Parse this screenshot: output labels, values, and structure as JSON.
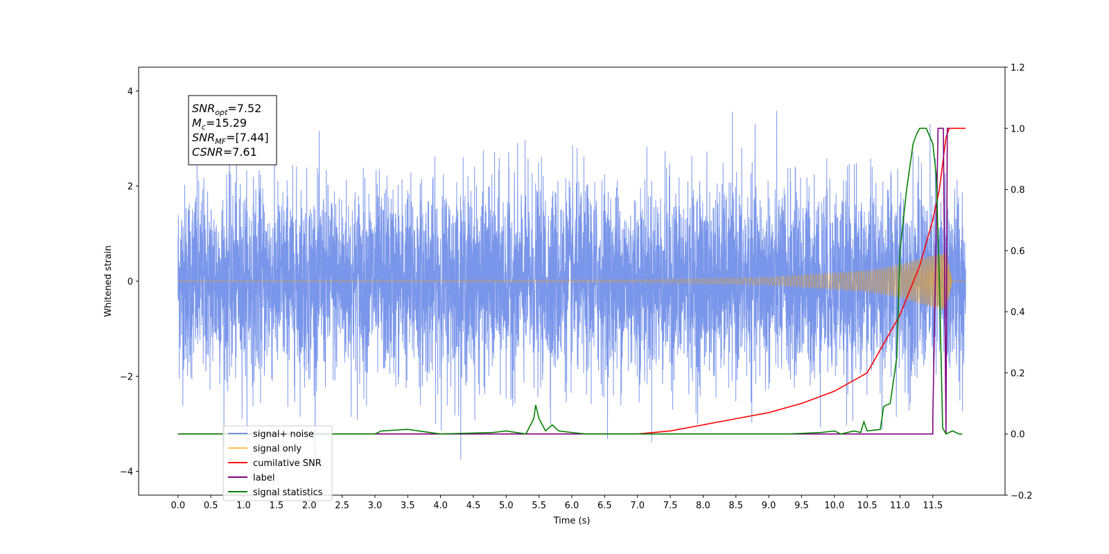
{
  "chart_data": {
    "type": "line",
    "title": "",
    "xlabel": "Time (s)",
    "ylabel": "Whitened strain",
    "ylabel_right": "",
    "xlim": [
      -0.6,
      12.6
    ],
    "ylim": [
      -4.5,
      4.5
    ],
    "ylim_right": [
      -0.2,
      1.2
    ],
    "x_ticks": [
      "0.0",
      "0.5",
      "1.0",
      "1.5",
      "2.0",
      "2.5",
      "3.0",
      "3.5",
      "4.0",
      "4.5",
      "5.0",
      "5.5",
      "6.0",
      "6.5",
      "7.0",
      "7.5",
      "8.0",
      "8.5",
      "9.0",
      "9.5",
      "10.0",
      "10.5",
      "11.0",
      "11.5"
    ],
    "y_ticks": [
      -4,
      -2,
      0,
      2,
      4
    ],
    "y_ticks_right": [
      "−0.2",
      "0.0",
      "0.2",
      "0.4",
      "0.6",
      "0.8",
      "1.0",
      "1.2"
    ],
    "grid": false,
    "legend_position": "lower-left",
    "annotation": {
      "lines": [
        {
          "sym": "SNR",
          "sub": "opt",
          "value": "=7.52"
        },
        {
          "sym": "M",
          "sub": "c",
          "value": "=15.29"
        },
        {
          "sym": "SNR",
          "sub": "MF",
          "value": "=[7.44]"
        },
        {
          "sym": "CSNR",
          "sub": "",
          "value": "=7.61"
        }
      ]
    },
    "series": [
      {
        "name": "signal+ noise",
        "color": "#4169e1",
        "axis": "left",
        "kind": "noise",
        "x_range": [
          0.0,
          12.0
        ],
        "amplitude_typical": 1.0,
        "amplitude_max": 4.1
      },
      {
        "name": "signal only",
        "color": "#ffa500",
        "axis": "left",
        "kind": "chirp",
        "x_range": [
          0.0,
          12.0
        ],
        "amplitude_envelope": [
          [
            0.0,
            0.01
          ],
          [
            7.0,
            0.03
          ],
          [
            9.0,
            0.08
          ],
          [
            10.5,
            0.22
          ],
          [
            11.0,
            0.35
          ],
          [
            11.5,
            0.55
          ],
          [
            11.7,
            0.6
          ],
          [
            11.8,
            0.0
          ],
          [
            12.0,
            0.0
          ]
        ]
      },
      {
        "name": "cumilative SNR",
        "color": "#ff0000",
        "axis": "right",
        "points": [
          [
            0.0,
            0.0
          ],
          [
            7.0,
            0.0
          ],
          [
            7.5,
            0.01
          ],
          [
            8.0,
            0.03
          ],
          [
            8.5,
            0.05
          ],
          [
            9.0,
            0.07
          ],
          [
            9.5,
            0.1
          ],
          [
            10.0,
            0.14
          ],
          [
            10.5,
            0.2
          ],
          [
            11.0,
            0.39
          ],
          [
            11.3,
            0.55
          ],
          [
            11.5,
            0.7
          ],
          [
            11.6,
            0.8
          ],
          [
            11.7,
            0.97
          ],
          [
            11.75,
            1.0
          ],
          [
            12.0,
            1.0
          ]
        ]
      },
      {
        "name": "label",
        "color": "#800080",
        "axis": "right",
        "points": [
          [
            0.0,
            0.0
          ],
          [
            11.5,
            0.0
          ],
          [
            11.5,
            0.05
          ],
          [
            11.58,
            1.0
          ],
          [
            11.66,
            1.0
          ],
          [
            11.7,
            0.0
          ],
          [
            11.72,
            1.0
          ],
          [
            11.75,
            1.0
          ]
        ]
      },
      {
        "name": "signal statistics",
        "color": "#008000",
        "axis": "right",
        "points": [
          [
            0.0,
            0.0
          ],
          [
            3.0,
            0.0
          ],
          [
            3.1,
            0.01
          ],
          [
            3.5,
            0.015
          ],
          [
            4.0,
            0.0
          ],
          [
            4.8,
            0.005
          ],
          [
            5.0,
            0.01
          ],
          [
            5.3,
            0.0
          ],
          [
            5.42,
            0.05
          ],
          [
            5.45,
            0.095
          ],
          [
            5.5,
            0.05
          ],
          [
            5.6,
            0.01
          ],
          [
            5.7,
            0.03
          ],
          [
            5.8,
            0.01
          ],
          [
            6.0,
            0.005
          ],
          [
            6.2,
            0.0
          ],
          [
            9.3,
            0.0
          ],
          [
            9.8,
            0.005
          ],
          [
            10.0,
            0.01
          ],
          [
            10.1,
            0.0
          ],
          [
            10.3,
            0.01
          ],
          [
            10.4,
            0.005
          ],
          [
            10.45,
            0.04
          ],
          [
            10.5,
            0.01
          ],
          [
            10.7,
            0.015
          ],
          [
            10.75,
            0.09
          ],
          [
            10.85,
            0.1
          ],
          [
            10.95,
            0.25
          ],
          [
            11.0,
            0.6
          ],
          [
            11.1,
            0.8
          ],
          [
            11.2,
            0.95
          ],
          [
            11.25,
            0.98
          ],
          [
            11.3,
            1.0
          ],
          [
            11.4,
            1.0
          ],
          [
            11.5,
            0.95
          ],
          [
            11.55,
            0.85
          ],
          [
            11.6,
            0.5
          ],
          [
            11.65,
            0.02
          ],
          [
            11.7,
            0.0
          ],
          [
            11.8,
            0.01
          ],
          [
            11.9,
            0.0
          ],
          [
            11.95,
            0.0
          ]
        ]
      }
    ],
    "legend_entries": [
      {
        "name": "signal+ noise",
        "color": "#4169e1"
      },
      {
        "name": "signal only",
        "color": "#ffa500"
      },
      {
        "name": "cumilative SNR",
        "color": "#ff0000"
      },
      {
        "name": "label",
        "color": "#800080"
      },
      {
        "name": "signal statistics",
        "color": "#008000"
      }
    ]
  }
}
